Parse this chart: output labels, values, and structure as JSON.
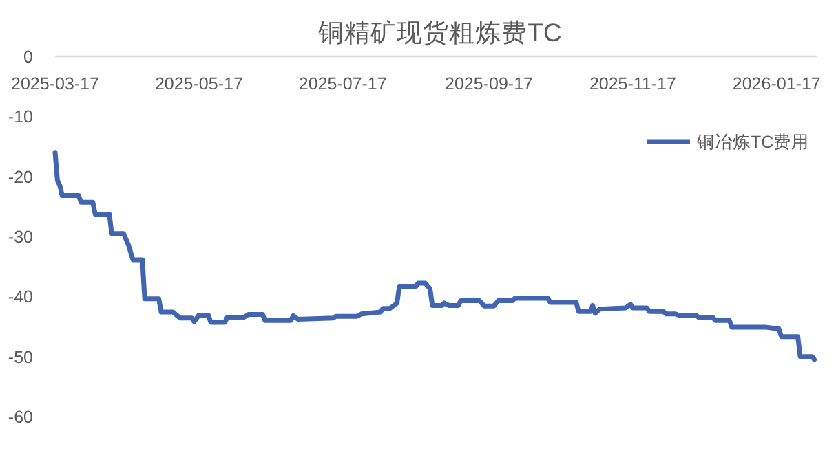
{
  "chart_data": {
    "type": "line",
    "title": "铜精矿现货粗炼费TC",
    "xlim": [
      "2025-03-17",
      "2026-02-03"
    ],
    "xticks": [
      "2025-03-17",
      "2025-05-17",
      "2025-07-17",
      "2025-09-17",
      "2025-11-17",
      "2026-01-17"
    ],
    "ylim": [
      -60,
      0
    ],
    "yticks": [
      0,
      -10,
      -20,
      -30,
      -40,
      -50,
      -60
    ],
    "grid": false,
    "legend": "top right",
    "line_style": "solid",
    "marker": "none",
    "series": [
      {
        "name": "铜冶炼TC费用",
        "color": "#4165b0",
        "x": [
          "2025-03-17",
          "2025-03-18",
          "2025-03-19",
          "2025-03-20",
          "2025-03-27",
          "2025-03-28",
          "2025-04-02",
          "2025-04-03",
          "2025-04-09",
          "2025-04-10",
          "2025-04-15",
          "2025-04-17",
          "2025-04-19",
          "2025-04-23",
          "2025-04-24",
          "2025-04-30",
          "2025-05-01",
          "2025-05-06",
          "2025-05-09",
          "2025-05-14",
          "2025-05-15",
          "2025-05-17",
          "2025-05-21",
          "2025-05-22",
          "2025-05-28",
          "2025-05-29",
          "2025-06-05",
          "2025-06-07",
          "2025-06-13",
          "2025-06-14",
          "2025-06-25",
          "2025-06-26",
          "2025-06-28",
          "2025-07-13",
          "2025-07-14",
          "2025-07-23",
          "2025-07-25",
          "2025-08-02",
          "2025-08-03",
          "2025-08-06",
          "2025-08-09",
          "2025-08-10",
          "2025-08-17",
          "2025-08-18",
          "2025-08-21",
          "2025-08-23",
          "2025-08-24",
          "2025-08-28",
          "2025-08-29",
          "2025-08-31",
          "2025-09-04",
          "2025-09-05",
          "2025-09-13",
          "2025-09-15",
          "2025-09-19",
          "2025-09-21",
          "2025-09-27",
          "2025-09-28",
          "2025-10-12",
          "2025-10-13",
          "2025-10-24",
          "2025-10-25",
          "2025-10-30",
          "2025-10-31",
          "2025-11-01",
          "2025-11-03",
          "2025-11-14",
          "2025-11-16",
          "2025-11-17",
          "2025-11-23",
          "2025-11-24",
          "2025-11-30",
          "2025-12-01",
          "2025-12-05",
          "2025-12-07",
          "2025-12-14",
          "2025-12-15",
          "2025-12-21",
          "2025-12-22",
          "2025-12-28",
          "2025-12-29",
          "2026-01-12",
          "2026-01-18",
          "2026-01-19",
          "2026-01-26",
          "2026-01-27",
          "2026-02-01",
          "2026-02-02"
        ],
        "values": [
          -16.0,
          -20.7,
          -21.5,
          -23.2,
          -23.2,
          -24.3,
          -24.3,
          -26.3,
          -26.3,
          -29.5,
          -29.5,
          -31.3,
          -33.9,
          -33.9,
          -40.4,
          -40.4,
          -42.6,
          -42.6,
          -43.6,
          -43.6,
          -44.2,
          -43.1,
          -43.1,
          -44.3,
          -44.3,
          -43.5,
          -43.5,
          -43.0,
          -43.0,
          -44.0,
          -44.0,
          -43.2,
          -43.8,
          -43.6,
          -43.3,
          -43.3,
          -42.9,
          -42.6,
          -42.0,
          -42.0,
          -41.1,
          -38.3,
          -38.3,
          -37.8,
          -37.8,
          -38.7,
          -41.5,
          -41.5,
          -41.1,
          -41.5,
          -41.5,
          -40.7,
          -40.7,
          -41.6,
          -41.6,
          -40.7,
          -40.7,
          -40.3,
          -40.3,
          -41.0,
          -41.0,
          -42.5,
          -42.5,
          -41.5,
          -42.8,
          -42.1,
          -41.9,
          -41.3,
          -41.9,
          -41.9,
          -42.5,
          -42.5,
          -42.9,
          -42.9,
          -43.2,
          -43.2,
          -43.5,
          -43.5,
          -44.0,
          -44.0,
          -45.1,
          -45.1,
          -45.4,
          -46.7,
          -46.7,
          -50.0,
          -50.0,
          -50.5
        ]
      }
    ]
  }
}
